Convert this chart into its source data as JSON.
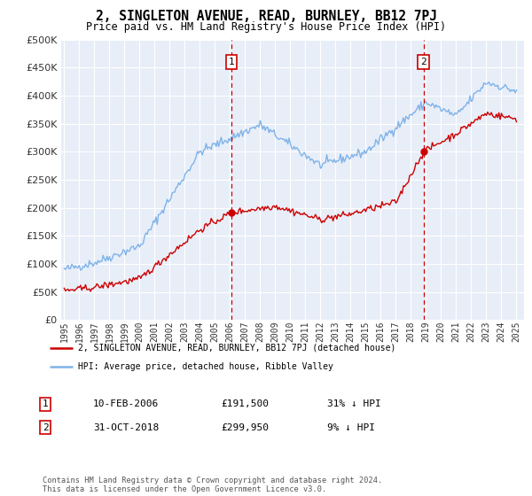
{
  "title": "2, SINGLETON AVENUE, READ, BURNLEY, BB12 7PJ",
  "subtitle": "Price paid vs. HM Land Registry's House Price Index (HPI)",
  "ylim": [
    0,
    500000
  ],
  "yticks": [
    0,
    50000,
    100000,
    150000,
    200000,
    250000,
    300000,
    350000,
    400000,
    450000,
    500000
  ],
  "xlim_start": 1994.8,
  "xlim_end": 2025.5,
  "background_color": "#ffffff",
  "plot_bg_color": "#e8eef8",
  "hpi_color": "#7fb3e8",
  "price_color": "#cc0000",
  "marker1_date": 2006.1,
  "marker1_price": 191500,
  "marker1_label": "10-FEB-2006",
  "marker1_amount": "£191,500",
  "marker1_pct": "31% ↓ HPI",
  "marker2_date": 2018.83,
  "marker2_price": 299950,
  "marker2_label": "31-OCT-2018",
  "marker2_amount": "£299,950",
  "marker2_pct": "9% ↓ HPI",
  "legend_line1": "2, SINGLETON AVENUE, READ, BURNLEY, BB12 7PJ (detached house)",
  "legend_line2": "HPI: Average price, detached house, Ribble Valley",
  "footnote": "Contains HM Land Registry data © Crown copyright and database right 2024.\nThis data is licensed under the Open Government Licence v3.0.",
  "grid_color": "#ffffff",
  "dashed_color": "#cc0000"
}
